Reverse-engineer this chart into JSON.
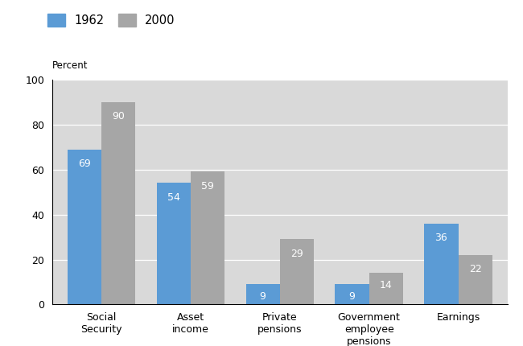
{
  "categories": [
    "Social\nSecurity",
    "Asset\nincome",
    "Private\npensions",
    "Government\nemployee\npensions",
    "Earnings"
  ],
  "values_1962": [
    69,
    54,
    9,
    9,
    36
  ],
  "values_2000": [
    90,
    59,
    29,
    14,
    22
  ],
  "color_1962": "#5b9bd5",
  "color_2000": "#a6a6a6",
  "bar_width": 0.38,
  "ylim": [
    0,
    100
  ],
  "yticks": [
    0,
    20,
    40,
    60,
    80,
    100
  ],
  "ylabel": "Percent",
  "legend_labels": [
    "1962",
    "2000"
  ],
  "plot_bg_color": "#d9d9d9",
  "fig_bg_color": "#ffffff",
  "label_fontsize": 9,
  "tick_fontsize": 9,
  "ylabel_fontsize": 8.5,
  "legend_fontsize": 10.5
}
